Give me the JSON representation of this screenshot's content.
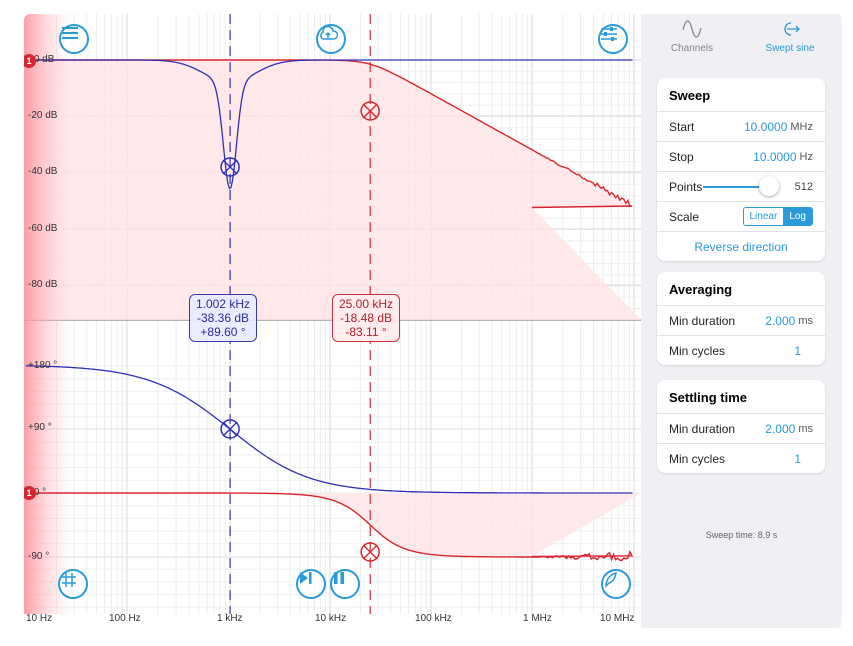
{
  "plot": {
    "magnitude_axis": [
      "+0 dB",
      "-20 dB",
      "-40 dB",
      "-60 dB",
      "-80 dB"
    ],
    "phase_axis": [
      "+180 °",
      "+90 °",
      "+0 °",
      "-90 °"
    ],
    "freq_axis": [
      "10 Hz",
      "100 Hz",
      "1 kHz",
      "10 kHz",
      "100 kHz",
      "1 MHz",
      "10 MHz"
    ],
    "channel_badge": "1",
    "marker_blue": {
      "freq": "1.002 kHz",
      "mag": "-38.36 dB",
      "phase": "+89.60 °"
    },
    "marker_red": {
      "freq": "25.00 kHz",
      "mag": "-18.48 dB",
      "phase": "-83.11 °"
    },
    "colors": {
      "ch1": "#d8262e",
      "ch2": "#3030b8",
      "accent": "#2a9ad8"
    },
    "icons": [
      "menu-icon",
      "upload-cloud-icon",
      "sliders-icon",
      "grid-icon",
      "step-play-icon",
      "pause-icon",
      "probe-icon"
    ]
  },
  "sidebar": {
    "tabs": [
      {
        "label": "Channels",
        "icon": "waveform-icon",
        "active": false
      },
      {
        "label": "Swept sine",
        "icon": "sweep-arrow-icon",
        "active": true
      }
    ],
    "sweep": {
      "title": "Sweep",
      "start_label": "Start",
      "start_value": "10.0000",
      "start_unit": "MHz",
      "stop_label": "Stop",
      "stop_value": "10.0000",
      "stop_unit": "Hz",
      "points_label": "Points",
      "points_value": "512",
      "scale_label": "Scale",
      "scale_linear": "Linear",
      "scale_log": "Log",
      "reverse": "Reverse direction"
    },
    "averaging": {
      "title": "Averaging",
      "min_duration_label": "Min duration",
      "min_duration_value": "2.000",
      "min_duration_unit": "ms",
      "min_cycles_label": "Min cycles",
      "min_cycles_value": "1"
    },
    "settling": {
      "title": "Settling time",
      "min_duration_label": "Min duration",
      "min_duration_value": "2.000",
      "min_duration_unit": "ms",
      "min_cycles_label": "Min cycles",
      "min_cycles_value": "1"
    },
    "sweep_time": "Sweep time: 8.9 s"
  }
}
